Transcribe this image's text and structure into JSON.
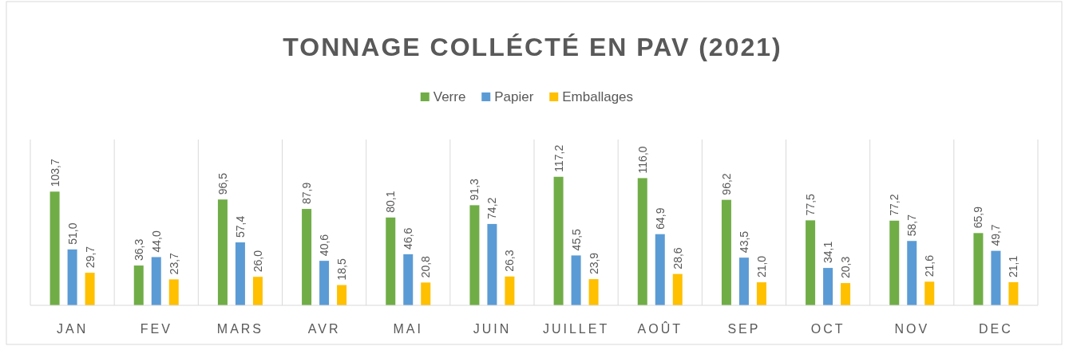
{
  "chart_data": {
    "type": "bar",
    "title": "TONNAGE COLLÉCTÉ EN PAV (2021)",
    "categories": [
      "JAN",
      "FEV",
      "MARS",
      "AVR",
      "MAI",
      "JUIN",
      "JUILLET",
      "AOÛT",
      "SEP",
      "OCT",
      "NOV",
      "DEC"
    ],
    "series": [
      {
        "name": "Verre",
        "color": "#70ad47",
        "values": [
          103.7,
          36.3,
          96.5,
          87.9,
          80.1,
          91.3,
          117.2,
          116.0,
          96.2,
          77.5,
          77.2,
          65.9
        ],
        "value_labels": [
          "103,7",
          "36,3",
          "96,5",
          "87,9",
          "80,1",
          "91,3",
          "117,2",
          "116,0",
          "96,2",
          "77,5",
          "77,2",
          "65,9"
        ]
      },
      {
        "name": "Papier",
        "color": "#5b9bd5",
        "values": [
          51.0,
          44.0,
          57.4,
          40.6,
          46.6,
          74.2,
          45.5,
          64.9,
          43.5,
          34.1,
          58.7,
          49.7
        ],
        "value_labels": [
          "51,0",
          "44,0",
          "57,4",
          "40,6",
          "46,6",
          "74,2",
          "45,5",
          "64,9",
          "43,5",
          "34,1",
          "58,7",
          "49,7"
        ]
      },
      {
        "name": "Emballages",
        "color": "#ffc000",
        "values": [
          29.7,
          23.7,
          26.0,
          18.5,
          20.8,
          26.3,
          23.9,
          28.6,
          21.0,
          20.3,
          21.6,
          21.1
        ],
        "value_labels": [
          "29,7",
          "23,7",
          "26,0",
          "18,5",
          "20,8",
          "26,3",
          "23,9",
          "28,6",
          "21,0",
          "20,3",
          "21,6",
          "21,1"
        ]
      }
    ],
    "legend": "top",
    "grid": "x"
  }
}
